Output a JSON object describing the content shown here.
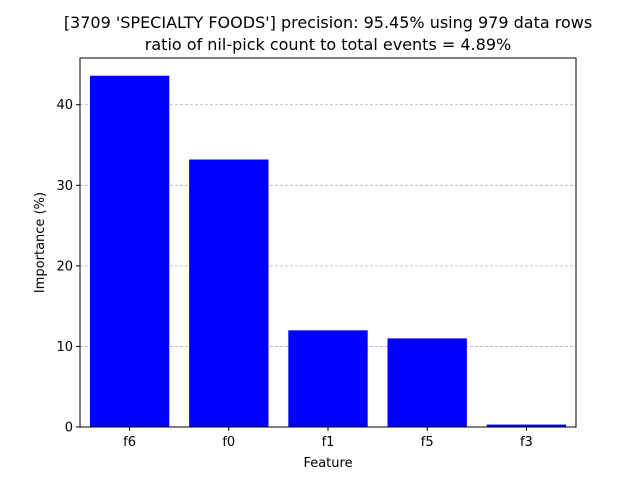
{
  "chart_data": {
    "type": "bar",
    "title": "[3709 'SPECIALTY FOODS'] precision: 95.45% using 979 data rows",
    "subtitle": "ratio of nil-pick count to total events = 4.89%",
    "xlabel": "Feature",
    "ylabel": "Importance (%)",
    "categories": [
      "f6",
      "f0",
      "f1",
      "f5",
      "f3"
    ],
    "values": [
      43.6,
      33.2,
      12.0,
      11.0,
      0.3
    ],
    "ylim": [
      0,
      45.8
    ],
    "yticks": [
      0,
      10,
      20,
      30,
      40
    ],
    "grid": "y-dashed",
    "bar_color": "#0000ff",
    "grid_color": "#b0b0b0"
  }
}
